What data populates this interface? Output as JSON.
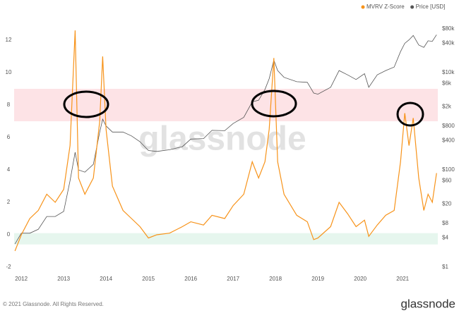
{
  "chart_data": {
    "type": "line",
    "watermark": "glassnode",
    "footer": "© 2021 Glassnode. All Rights Reserved.",
    "logo": "glassnode",
    "x": [
      2011.85,
      2012.0,
      2012.2,
      2012.4,
      2012.6,
      2012.8,
      2013.0,
      2013.15,
      2013.27,
      2013.35,
      2013.5,
      2013.7,
      2013.85,
      2013.92,
      2014.0,
      2014.15,
      2014.4,
      2014.6,
      2014.8,
      2015.0,
      2015.2,
      2015.5,
      2015.8,
      2016.0,
      2016.3,
      2016.5,
      2016.8,
      2017.0,
      2017.25,
      2017.45,
      2017.6,
      2017.75,
      2017.85,
      2017.96,
      2018.05,
      2018.2,
      2018.5,
      2018.75,
      2018.9,
      2019.0,
      2019.3,
      2019.5,
      2019.7,
      2019.9,
      2020.1,
      2020.2,
      2020.4,
      2020.6,
      2020.8,
      2020.95,
      2021.05,
      2021.15,
      2021.25,
      2021.38,
      2021.5,
      2021.6,
      2021.7,
      2021.8
    ],
    "series": [
      {
        "name": "MVRV Z-Score",
        "color": "#f7931a",
        "axis": "y",
        "values": [
          -1.0,
          0.0,
          1.0,
          1.5,
          2.5,
          2.0,
          2.8,
          5.5,
          12.6,
          3.5,
          2.5,
          3.5,
          7.0,
          11.0,
          6.5,
          3.0,
          1.5,
          1.0,
          0.5,
          -0.2,
          0.0,
          0.1,
          0.5,
          0.8,
          0.6,
          1.2,
          1.0,
          1.8,
          2.5,
          4.5,
          3.5,
          4.5,
          6.5,
          10.9,
          4.5,
          2.5,
          1.2,
          0.8,
          -0.3,
          -0.2,
          0.5,
          2.0,
          1.3,
          0.5,
          0.9,
          -0.1,
          0.6,
          1.2,
          1.5,
          4.5,
          7.5,
          5.5,
          7.2,
          3.5,
          1.5,
          2.5,
          2.0,
          3.8
        ]
      },
      {
        "name": "Price [USD]",
        "color": "#555555",
        "axis": "y2",
        "values": [
          3,
          5,
          5,
          6,
          11,
          11,
          14,
          60,
          230,
          100,
          90,
          130,
          600,
          1100,
          800,
          600,
          600,
          500,
          380,
          250,
          240,
          260,
          300,
          430,
          440,
          650,
          640,
          900,
          1200,
          2500,
          2700,
          4500,
          7500,
          18000,
          11000,
          8000,
          6500,
          6300,
          3800,
          3600,
          5000,
          11000,
          9000,
          7200,
          9500,
          5000,
          9000,
          11000,
          13000,
          27000,
          40000,
          47000,
          58000,
          37000,
          33000,
          45000,
          44000,
          60000
        ]
      }
    ],
    "zones": [
      {
        "from": 7,
        "to": 9,
        "color": "#fde3e6"
      },
      {
        "from": -0.6,
        "to": 0.1,
        "color": "#e6f6ee"
      }
    ],
    "xlim": [
      2011.83,
      2021.83
    ],
    "xticks": [
      2012,
      2013,
      2014,
      2015,
      2016,
      2017,
      2018,
      2019,
      2020,
      2021
    ],
    "ylim": [
      -2,
      13
    ],
    "yticks": [
      -2,
      0,
      2,
      4,
      6,
      8,
      10,
      12
    ],
    "y2lim": [
      1,
      100000
    ],
    "y2log": true,
    "y2ticks": [
      {
        "value": 80000,
        "label": "$80k"
      },
      {
        "value": 40000,
        "label": "$40k"
      },
      {
        "value": 10000,
        "label": "$10k"
      },
      {
        "value": 6000,
        "label": "$6k"
      },
      {
        "value": 2000,
        "label": "$2k"
      },
      {
        "value": 800,
        "label": "$800"
      },
      {
        "value": 400,
        "label": "$400"
      },
      {
        "value": 100,
        "label": "$100"
      },
      {
        "value": 60,
        "label": "$60"
      },
      {
        "value": 20,
        "label": "$20"
      },
      {
        "value": 8,
        "label": "$8"
      },
      {
        "value": 4,
        "label": "$4"
      },
      {
        "value": 1,
        "label": "$1"
      }
    ],
    "legend": "top-right"
  }
}
